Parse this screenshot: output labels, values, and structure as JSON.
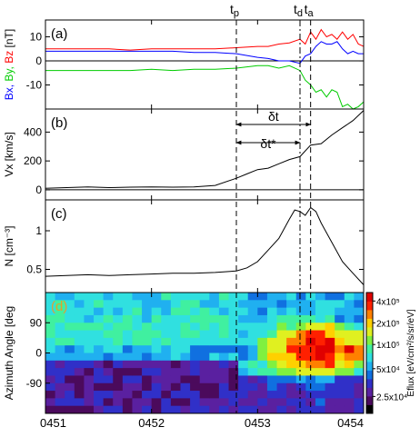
{
  "figure": {
    "markers": [
      {
        "label": "t",
        "sub": "p",
        "time": 52.8,
        "style": "dashed"
      },
      {
        "label": "t",
        "sub": "d",
        "time": 53.4,
        "style": "dashdot"
      },
      {
        "label": "t",
        "sub": "a",
        "time": 53.5,
        "style": "dashed"
      }
    ],
    "x_ticks": [
      {
        "label": "0451",
        "t": 51
      },
      {
        "label": "0452",
        "t": 52
      },
      {
        "label": "0453",
        "t": 53
      },
      {
        "label": "0454",
        "t": 54
      }
    ],
    "xlim": [
      51,
      54
    ],
    "intervals": [
      {
        "label": "δt",
        "from": 52.8,
        "to": 53.5
      },
      {
        "label": "δt*",
        "from": 52.8,
        "to": 53.4
      }
    ]
  },
  "chart_data": [
    {
      "type": "line",
      "panel_label": "(a)",
      "ylabel_parts": [
        {
          "text": "Bx, ",
          "color": "#0000ff"
        },
        {
          "text": "By, ",
          "color": "#00cc00"
        },
        {
          "text": "Bz",
          "color": "#ff0000"
        },
        {
          "text": " [nT]",
          "color": "#000000"
        }
      ],
      "ylim": [
        -20,
        17
      ],
      "yticks": [
        -10,
        0,
        10
      ],
      "zero_line": true,
      "x": [
        51.0,
        51.2,
        51.4,
        51.6,
        51.8,
        52.0,
        52.2,
        52.4,
        52.6,
        52.8,
        53.0,
        53.1,
        53.2,
        53.3,
        53.4,
        53.45,
        53.5,
        53.55,
        53.6,
        53.65,
        53.7,
        53.75,
        53.8,
        53.85,
        53.9,
        53.95,
        54.0
      ],
      "series": [
        {
          "name": "Bz",
          "color": "#ff0000",
          "values": [
            5,
            5,
            5,
            5,
            4.5,
            5,
            5,
            5,
            5,
            5.5,
            6,
            6,
            7,
            7.5,
            9,
            7,
            12,
            9,
            13,
            10,
            11,
            9,
            12,
            9,
            11,
            7,
            6
          ]
        },
        {
          "name": "By",
          "color": "#00cc00",
          "values": [
            -4,
            -4,
            -4,
            -4,
            -4,
            -3.5,
            -4,
            -3.5,
            -3.5,
            -3,
            -2,
            -2,
            -3,
            -2,
            -4,
            -8,
            -10,
            -13,
            -12,
            -15,
            -12,
            -13,
            -19,
            -18,
            -20,
            -19,
            -17
          ]
        },
        {
          "name": "Bx",
          "color": "#0000ff",
          "values": [
            4,
            4,
            4,
            4,
            4,
            4,
            4,
            3.5,
            3.5,
            3,
            1.5,
            1,
            0,
            0,
            -1,
            2,
            3,
            6,
            8,
            7,
            7,
            8,
            5,
            3,
            4,
            3,
            3
          ]
        }
      ]
    },
    {
      "type": "line",
      "panel_label": "(b)",
      "ylabel": "Vx [km/s]",
      "ylim": [
        -70,
        560
      ],
      "yticks": [
        0,
        200,
        400
      ],
      "zero_line": true,
      "x": [
        51.0,
        51.2,
        51.4,
        51.6,
        51.8,
        52.0,
        52.2,
        52.4,
        52.6,
        52.8,
        52.9,
        53.0,
        53.1,
        53.2,
        53.3,
        53.4,
        53.5,
        53.6,
        53.7,
        53.8,
        53.9,
        54.0
      ],
      "series": [
        {
          "name": "Vx",
          "color": "#000000",
          "values": [
            10,
            15,
            20,
            15,
            18,
            20,
            18,
            20,
            30,
            80,
            110,
            140,
            150,
            180,
            210,
            230,
            310,
            320,
            380,
            430,
            480,
            550
          ]
        }
      ]
    },
    {
      "type": "line",
      "panel_label": "(c)",
      "ylabel": "N [cm⁻³]",
      "ylim": [
        0.2,
        1.4
      ],
      "yticks": [
        0.5,
        1.0
      ],
      "ytick_labels": [
        "0.5",
        "1"
      ],
      "x": [
        51.0,
        51.2,
        51.4,
        51.6,
        51.8,
        52.0,
        52.2,
        52.4,
        52.6,
        52.8,
        52.9,
        53.0,
        53.1,
        53.2,
        53.3,
        53.35,
        53.4,
        53.45,
        53.5,
        53.55,
        53.6,
        53.7,
        53.8,
        53.9,
        54.0
      ],
      "series": [
        {
          "name": "N",
          "color": "#000000",
          "values": [
            0.41,
            0.42,
            0.43,
            0.42,
            0.43,
            0.44,
            0.45,
            0.45,
            0.46,
            0.48,
            0.52,
            0.6,
            0.75,
            0.9,
            1.15,
            1.27,
            1.25,
            1.2,
            1.3,
            1.25,
            1.1,
            0.85,
            0.6,
            0.45,
            0.3
          ]
        }
      ]
    },
    {
      "type": "heatmap",
      "panel_label": "(d)",
      "panel_label_color": "#e0a030",
      "ylabel": "Azimuth Angle [deg",
      "yrange": [
        -180,
        180
      ],
      "yticks": [
        -90,
        0,
        90
      ],
      "colorbar": {
        "label": "Eflux [eV/cm²/s/sr/eV]",
        "ticks": [
          {
            "label": "4x10⁵",
            "frac": 0.93
          },
          {
            "label": "2x10⁵",
            "frac": 0.75
          },
          {
            "label": "1x10⁵",
            "frac": 0.57
          },
          {
            "label": "5x10⁴",
            "frac": 0.37
          },
          {
            "label": "2.5x10⁴",
            "frac": 0.14
          }
        ],
        "colors": [
          "#000000",
          "#4b0a5c",
          "#5a20a0",
          "#3030c8",
          "#1070e0",
          "#20b0f0",
          "#30e0e0",
          "#40f0a0",
          "#80f040",
          "#e0f020",
          "#ffd000",
          "#ff8000",
          "#ff2000",
          "#e00000"
        ]
      },
      "columns": 33,
      "rows": 16
    }
  ]
}
